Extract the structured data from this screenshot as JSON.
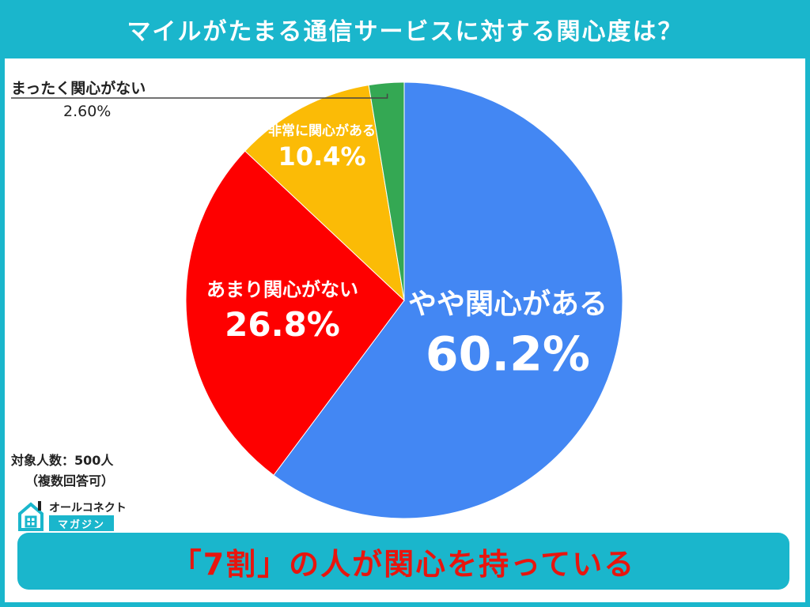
{
  "header": {
    "title": "マイルがたまる通信サービスに対する関心度は？"
  },
  "chart_data": {
    "type": "pie",
    "slices": [
      {
        "label": "やや関心がある",
        "value": 60.2,
        "display": "60.2%",
        "color": "#4387f3"
      },
      {
        "label": "あまり関心がない",
        "value": 26.8,
        "display": "26.8%",
        "color": "#fe0000"
      },
      {
        "label": "非常に関心がある",
        "value": 10.4,
        "display": "10.4%",
        "color": "#fbbb06"
      },
      {
        "label": "まったく関心がない",
        "value": 2.6,
        "display": "2.60%",
        "color": "#34a853"
      }
    ]
  },
  "footer_note": {
    "line1": "対象人数：500人",
    "line2": "（複数回答可）"
  },
  "logo": {
    "top": "オールコネクト",
    "badge": "マガジン"
  },
  "banner": {
    "text": "「7割」の人が関心を持っている"
  }
}
